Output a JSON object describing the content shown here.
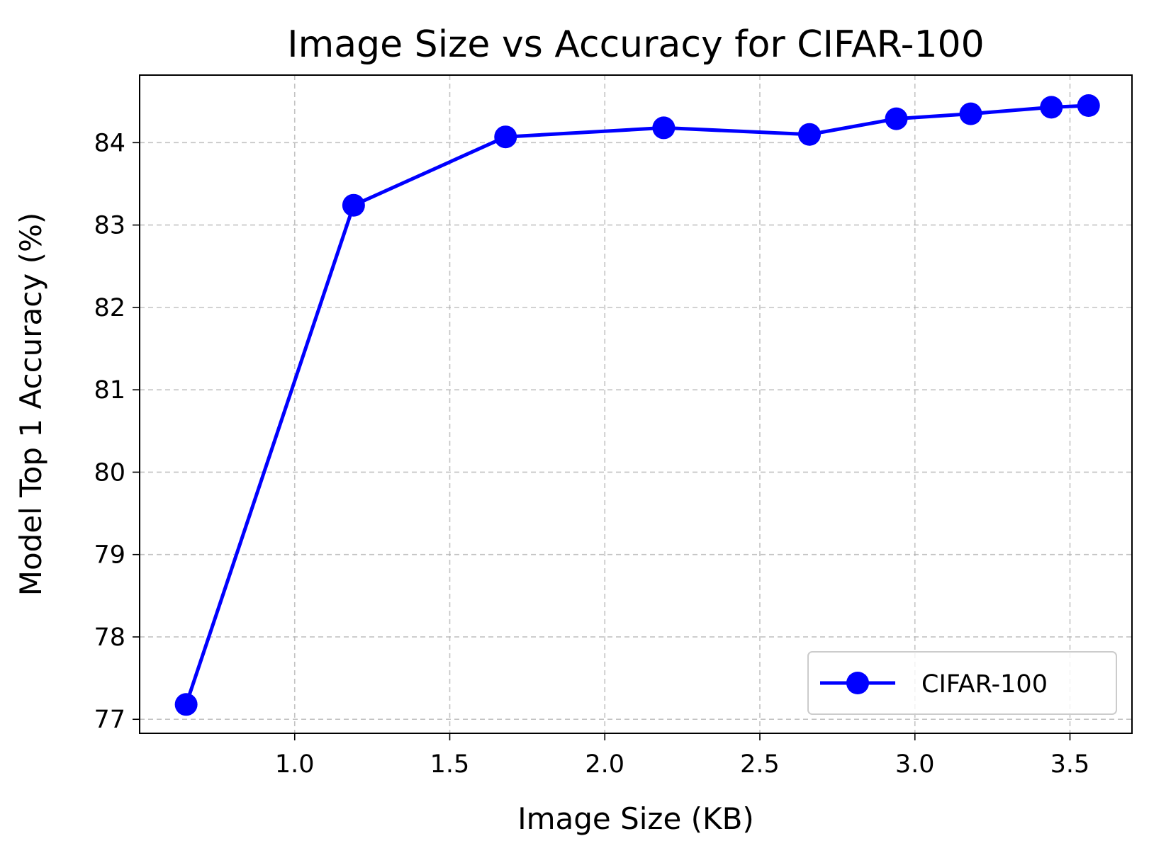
{
  "chart_data": {
    "type": "line",
    "title": "Image Size vs Accuracy for CIFAR-100",
    "xlabel": "Image Size (KB)",
    "ylabel": "Model Top 1 Accuracy (%)",
    "xlim": [
      0.5,
      3.7
    ],
    "ylim": [
      76.83,
      84.82
    ],
    "xticks": [
      1.0,
      1.5,
      2.0,
      2.5,
      3.0,
      3.5
    ],
    "xtick_labels": [
      "1.0",
      "1.5",
      "2.0",
      "2.5",
      "3.0",
      "3.5"
    ],
    "yticks": [
      77,
      78,
      79,
      80,
      81,
      82,
      83,
      84
    ],
    "ytick_labels": [
      "77",
      "78",
      "79",
      "80",
      "81",
      "82",
      "83",
      "84"
    ],
    "grid": true,
    "legend_position": "lower-right",
    "series": [
      {
        "name": "CIFAR-100",
        "color": "#0000ff",
        "marker": "circle",
        "x": [
          0.65,
          1.19,
          1.68,
          2.19,
          2.66,
          2.94,
          3.18,
          3.44,
          3.56
        ],
        "y": [
          77.18,
          83.24,
          84.07,
          84.18,
          84.1,
          84.29,
          84.35,
          84.43,
          84.45
        ]
      }
    ]
  }
}
